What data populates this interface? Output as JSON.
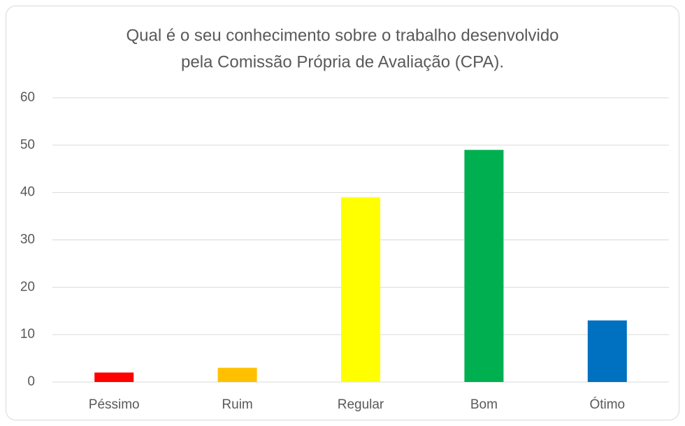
{
  "chart_data": {
    "type": "bar",
    "title": [
      "Qual é o seu conhecimento sobre o trabalho desenvolvido",
      "pela Comissão Própria de Avaliação (CPA)."
    ],
    "categories": [
      "Péssimo",
      "Ruim",
      "Regular",
      "Bom",
      "Ótimo"
    ],
    "values": [
      2,
      3,
      39,
      49,
      13
    ],
    "colors": [
      "#ff0000",
      "#ffc000",
      "#ffff00",
      "#00b050",
      "#0070c0"
    ],
    "ylim": [
      0,
      60
    ],
    "yticks": [
      0,
      10,
      20,
      30,
      40,
      50,
      60
    ],
    "grid": true
  }
}
